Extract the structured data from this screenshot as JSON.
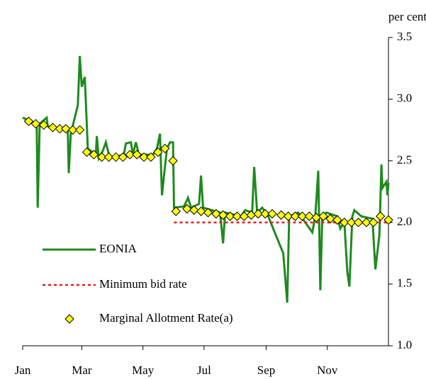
{
  "chart_data": {
    "type": "line",
    "ylabel": "per cent",
    "xlim": [
      0,
      365
    ],
    "xticks": [
      {
        "value": 0,
        "label": "Jan"
      },
      {
        "value": 59,
        "label": "Mar"
      },
      {
        "value": 120,
        "label": "May"
      },
      {
        "value": 181,
        "label": "Jul"
      },
      {
        "value": 243,
        "label": "Sep"
      },
      {
        "value": 304,
        "label": "Nov"
      }
    ],
    "ylim": [
      1.0,
      3.5
    ],
    "yticks": [
      {
        "value": 1.0,
        "label": "1.0"
      },
      1.5,
      {
        "value": 2.0,
        "label": "2.0"
      },
      2.5,
      {
        "value": 3.0,
        "label": "3.0"
      },
      3.5
    ],
    "series": [
      {
        "name": "EONIA",
        "color": "#1e8a1e",
        "style": "solid",
        "x": [
          0,
          13,
          14,
          15,
          17,
          24,
          25,
          41,
          45,
          46,
          48,
          55,
          57,
          59,
          62,
          65,
          73,
          74,
          76,
          80,
          83,
          87,
          101,
          103,
          108,
          110,
          113,
          116,
          130,
          134,
          137,
          139,
          142,
          144,
          147,
          150,
          151,
          161,
          165,
          168,
          176,
          178,
          180,
          197,
          200,
          202,
          218,
          222,
          229,
          231,
          234,
          239,
          245,
          260,
          264,
          266,
          275,
          289,
          292,
          295,
          297,
          299,
          303,
          314,
          317,
          321,
          324,
          326,
          329,
          331,
          338,
          349,
          352,
          356,
          358,
          359,
          363,
          364,
          365
        ],
        "values": [
          2.85,
          2.8,
          2.78,
          2.12,
          2.8,
          2.85,
          2.78,
          2.75,
          2.76,
          2.4,
          2.72,
          2.95,
          3.35,
          3.1,
          3.18,
          2.6,
          2.55,
          2.7,
          2.52,
          2.58,
          2.65,
          2.52,
          2.55,
          2.64,
          2.65,
          2.55,
          2.65,
          2.55,
          2.55,
          2.6,
          2.72,
          2.22,
          2.45,
          2.6,
          2.65,
          2.65,
          2.12,
          2.13,
          2.2,
          2.12,
          2.15,
          2.38,
          2.12,
          2.08,
          1.83,
          2.08,
          2.05,
          2.1,
          2.08,
          2.45,
          2.08,
          2.12,
          2.05,
          1.75,
          1.35,
          2.05,
          2.08,
          1.92,
          2.05,
          2.42,
          1.45,
          2.05,
          2.08,
          2.05,
          1.95,
          2.0,
          1.6,
          1.48,
          2.05,
          2.1,
          2.05,
          2.03,
          1.62,
          1.9,
          2.47,
          2.28,
          2.33,
          2.22,
          2.32
        ]
      },
      {
        "name": "Minimum bid rate",
        "color": "#e02020",
        "style": "dotted",
        "x": [
          151,
          365
        ],
        "values": [
          2.0,
          2.0
        ]
      },
      {
        "name": "Marginal Allotment Rate(a)",
        "color": "#ffff00",
        "style": "marker",
        "x": [
          6,
          13,
          21,
          30,
          37,
          43,
          50,
          57,
          64,
          71,
          79,
          86,
          93,
          100,
          107,
          114,
          121,
          128,
          135,
          142,
          150,
          153,
          164,
          171,
          178,
          185,
          193,
          200,
          207,
          214,
          221,
          228,
          235,
          242,
          249,
          258,
          265,
          272,
          279,
          286,
          293,
          300,
          307,
          314,
          321,
          328,
          335,
          343,
          350,
          357,
          365
        ],
        "values": [
          2.82,
          2.8,
          2.79,
          2.77,
          2.76,
          2.76,
          2.75,
          2.75,
          2.57,
          2.55,
          2.53,
          2.53,
          2.53,
          2.53,
          2.55,
          2.55,
          2.53,
          2.53,
          2.57,
          2.6,
          2.5,
          2.09,
          2.11,
          2.1,
          2.09,
          2.08,
          2.07,
          2.06,
          2.05,
          2.05,
          2.05,
          2.06,
          2.07,
          2.07,
          2.07,
          2.06,
          2.05,
          2.05,
          2.05,
          2.05,
          2.04,
          2.05,
          2.03,
          2.02,
          2.0,
          2.0,
          2.0,
          2.0,
          2.0,
          2.05,
          2.02
        ]
      }
    ]
  }
}
